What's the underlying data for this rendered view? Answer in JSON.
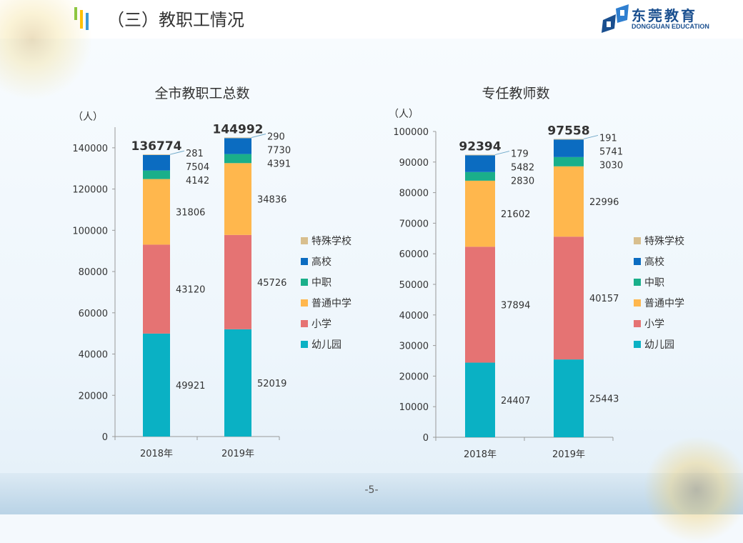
{
  "header": {
    "title": "（三）教职工情况",
    "logo_cn": "东莞教育",
    "logo_en": "DONGGUAN EDUCATION"
  },
  "footer": {
    "page_number": "-5-"
  },
  "colors": {
    "特殊学校": "#d8bf8e",
    "高校": "#0b6cc1",
    "中职": "#1aaf8a",
    "普通中学": "#ffb74d",
    "小学": "#e57373",
    "幼儿园": "#0ab1c4",
    "accent_green": "#8dc63f",
    "accent_yellow": "#ffc107",
    "accent_blue": "#3e9ad6"
  },
  "chart_data": [
    {
      "type": "bar",
      "stacked": true,
      "title": "全市教职工总数",
      "unit_label": "（人）",
      "categories": [
        "2018年",
        "2019年"
      ],
      "ylim": [
        0,
        160000
      ],
      "yticks": [
        0,
        20000,
        40000,
        60000,
        80000,
        100000,
        120000,
        140000
      ],
      "totals": [
        136774,
        144992
      ],
      "series": [
        {
          "name": "幼儿园",
          "values": [
            49921,
            52019
          ]
        },
        {
          "name": "小学",
          "values": [
            43120,
            45726
          ]
        },
        {
          "name": "普通中学",
          "values": [
            31806,
            34836
          ]
        },
        {
          "name": "中职",
          "values": [
            4142,
            4391
          ]
        },
        {
          "name": "高校",
          "values": [
            7504,
            7730
          ]
        },
        {
          "name": "特殊学校",
          "values": [
            281,
            290
          ]
        }
      ],
      "legend": [
        "特殊学校",
        "高校",
        "中职",
        "普通中学",
        "小学",
        "幼儿园"
      ],
      "legend_position": "right"
    },
    {
      "type": "bar",
      "stacked": true,
      "title": "专任教师数",
      "unit_label": "（人）",
      "categories": [
        "2018年",
        "2019年"
      ],
      "ylim": [
        0,
        100000
      ],
      "yticks": [
        0,
        10000,
        20000,
        30000,
        40000,
        50000,
        60000,
        70000,
        80000,
        90000,
        100000
      ],
      "totals": [
        92394,
        97558
      ],
      "series": [
        {
          "name": "幼儿园",
          "values": [
            24407,
            25443
          ]
        },
        {
          "name": "小学",
          "values": [
            37894,
            40157
          ]
        },
        {
          "name": "普通中学",
          "values": [
            21602,
            22996
          ]
        },
        {
          "name": "中职",
          "values": [
            2830,
            3030
          ]
        },
        {
          "name": "高校",
          "values": [
            5482,
            5741
          ]
        },
        {
          "name": "特殊学校",
          "values": [
            179,
            191
          ]
        }
      ],
      "legend": [
        "特殊学校",
        "高校",
        "中职",
        "普通中学",
        "小学",
        "幼儿园"
      ],
      "legend_position": "right"
    }
  ]
}
